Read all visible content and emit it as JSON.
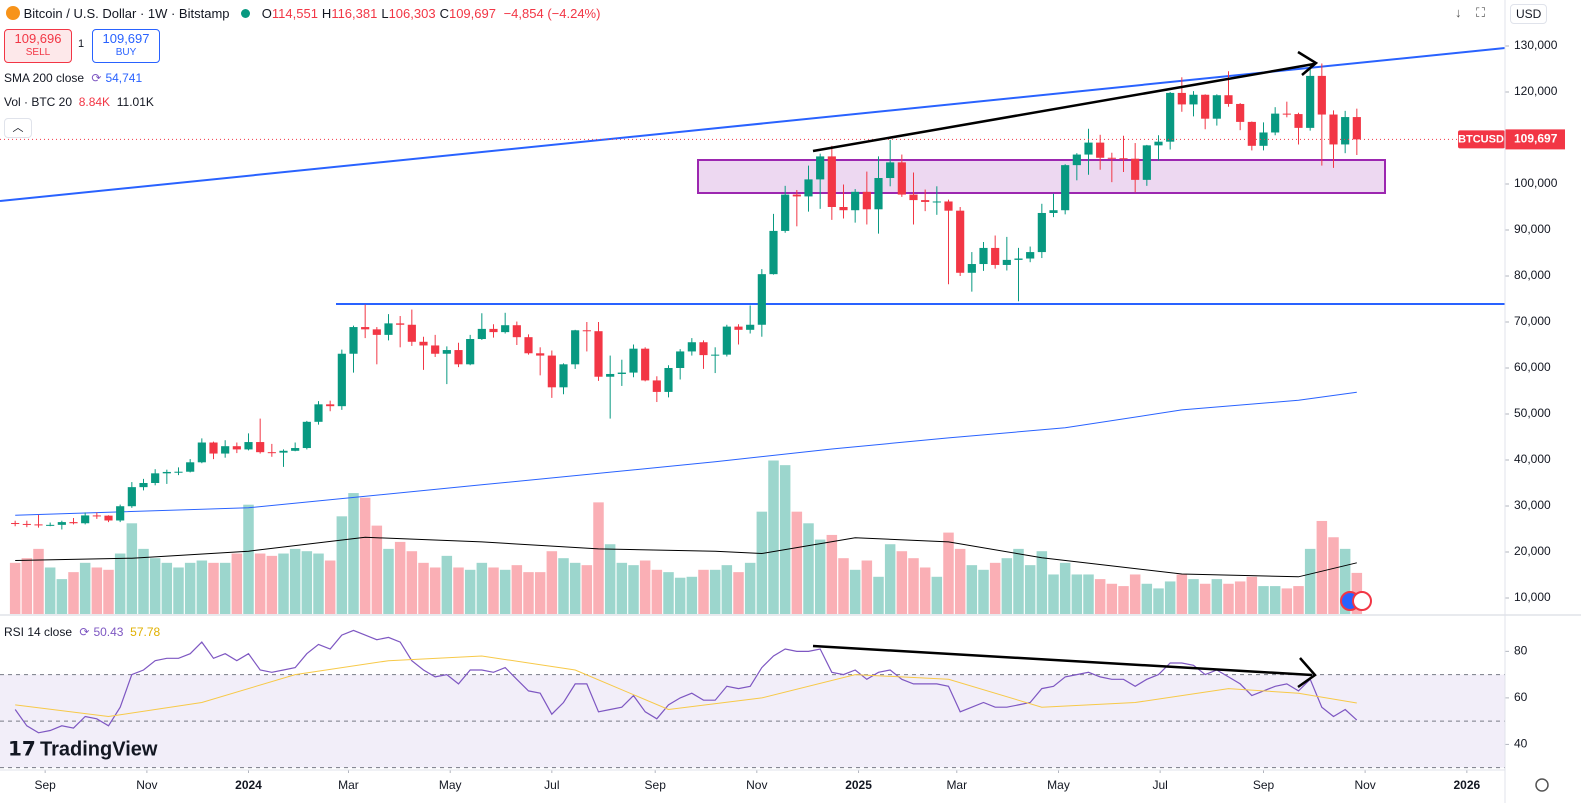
{
  "header": {
    "symbol": "Bitcoin / U.S. Dollar · 1W · Bitstamp",
    "ohlc": [
      {
        "label": "O",
        "value": "114,551"
      },
      {
        "label": "H",
        "value": "116,381"
      },
      {
        "label": "L",
        "value": "106,303"
      },
      {
        "label": "C",
        "value": "109,697"
      }
    ],
    "change": "−4,854 (−4.24%)",
    "sell": {
      "price": "109,696",
      "label": "SELL"
    },
    "spread": "1",
    "buy": {
      "price": "109,697",
      "label": "BUY"
    },
    "currency": "USD"
  },
  "logo": "TradingView",
  "chart_data": {
    "type": "candlestick",
    "candles": [
      [
        26300,
        26800,
        25600,
        26100
      ],
      [
        26100,
        26800,
        25400,
        26000
      ],
      [
        26000,
        28100,
        25300,
        25800
      ],
      [
        25800,
        26400,
        25600,
        25900
      ],
      [
        25900,
        26800,
        24900,
        26500
      ],
      [
        26500,
        27400,
        26000,
        26250
      ],
      [
        26250,
        28600,
        26000,
        27950
      ],
      [
        27950,
        28600,
        27200,
        27900
      ],
      [
        27900,
        28000,
        26500,
        26850
      ],
      [
        26850,
        30300,
        26500,
        29950
      ],
      [
        29950,
        35200,
        29600,
        34100
      ],
      [
        34100,
        35900,
        33400,
        35000
      ],
      [
        35000,
        38000,
        34500,
        37100
      ],
      [
        37100,
        37900,
        34800,
        37400
      ],
      [
        37400,
        38400,
        36700,
        37450
      ],
      [
        37450,
        40200,
        37300,
        39500
      ],
      [
        39500,
        44700,
        39300,
        43800
      ],
      [
        43800,
        44000,
        40200,
        41400
      ],
      [
        41400,
        44300,
        40500,
        43000
      ],
      [
        43000,
        43800,
        41500,
        42300
      ],
      [
        42300,
        45800,
        42100,
        43900
      ],
      [
        43900,
        49000,
        41400,
        41700
      ],
      [
        41700,
        43500,
        40700,
        41600
      ],
      [
        41600,
        42300,
        38500,
        42000
      ],
      [
        42000,
        43800,
        41900,
        42600
      ],
      [
        42600,
        48500,
        42300,
        48300
      ],
      [
        48300,
        52800,
        47700,
        52100
      ],
      [
        52100,
        52900,
        50600,
        51700
      ],
      [
        51700,
        64000,
        50900,
        63100
      ],
      [
        63100,
        69200,
        59000,
        68900
      ],
      [
        68900,
        73800,
        66500,
        68400
      ],
      [
        68400,
        68900,
        60800,
        67200
      ],
      [
        67200,
        71700,
        66000,
        69700
      ],
      [
        69700,
        71300,
        64500,
        69400
      ],
      [
        69400,
        72700,
        64800,
        65700
      ],
      [
        65700,
        66800,
        59600,
        64900
      ],
      [
        64900,
        67200,
        62400,
        63100
      ],
      [
        63100,
        64700,
        56500,
        63900
      ],
      [
        63900,
        65500,
        60200,
        60800
      ],
      [
        60800,
        67200,
        60600,
        66300
      ],
      [
        66300,
        71900,
        66100,
        68500
      ],
      [
        68500,
        69500,
        66600,
        67800
      ],
      [
        67800,
        72000,
        67500,
        69300
      ],
      [
        69300,
        70100,
        65000,
        66700
      ],
      [
        66700,
        67300,
        62900,
        63200
      ],
      [
        63200,
        64500,
        58400,
        62700
      ],
      [
        62700,
        63800,
        53500,
        55800
      ],
      [
        55800,
        61000,
        54300,
        60800
      ],
      [
        60800,
        68300,
        59800,
        68200
      ],
      [
        68200,
        70000,
        63600,
        68000
      ],
      [
        68000,
        70000,
        57200,
        58100
      ],
      [
        58100,
        62700,
        49000,
        58700
      ],
      [
        58700,
        61800,
        56100,
        59000
      ],
      [
        59000,
        65100,
        58000,
        64200
      ],
      [
        64200,
        64500,
        57100,
        57300
      ],
      [
        57300,
        58200,
        52600,
        54800
      ],
      [
        54800,
        60600,
        53600,
        60000
      ],
      [
        60000,
        64100,
        57500,
        63600
      ],
      [
        63600,
        66500,
        62700,
        65600
      ],
      [
        65600,
        66000,
        59800,
        62800
      ],
      [
        62800,
        64500,
        58900,
        62900
      ],
      [
        62900,
        69400,
        62500,
        69000
      ],
      [
        69000,
        69500,
        65100,
        68300
      ],
      [
        68300,
        73600,
        67500,
        69400
      ],
      [
        69400,
        81500,
        66800,
        80400
      ],
      [
        80400,
        93500,
        80300,
        89800
      ],
      [
        89800,
        99600,
        89400,
        97700
      ],
      [
        97700,
        98700,
        90800,
        97300
      ],
      [
        97300,
        104000,
        94000,
        101000
      ],
      [
        101000,
        106600,
        94600,
        106000
      ],
      [
        106000,
        108300,
        92200,
        95000
      ],
      [
        95000,
        99900,
        92500,
        94300
      ],
      [
        94300,
        98900,
        91600,
        98300
      ],
      [
        98300,
        102700,
        91200,
        94500
      ],
      [
        94500,
        106000,
        89200,
        101300
      ],
      [
        101300,
        109600,
        99500,
        104700
      ],
      [
        104700,
        106400,
        97200,
        97700
      ],
      [
        97700,
        102500,
        91200,
        96500
      ],
      [
        96500,
        98800,
        94100,
        96100
      ],
      [
        96100,
        99500,
        93300,
        96200
      ],
      [
        96200,
        96600,
        78200,
        94200
      ],
      [
        94200,
        95000,
        80000,
        80700
      ],
      [
        80700,
        85200,
        76600,
        82600
      ],
      [
        82600,
        87400,
        81100,
        86100
      ],
      [
        86100,
        88800,
        81600,
        82400
      ],
      [
        82400,
        88500,
        81200,
        83500
      ],
      [
        83500,
        86100,
        74500,
        83800
      ],
      [
        83800,
        86400,
        83000,
        85200
      ],
      [
        85200,
        95700,
        83900,
        93700
      ],
      [
        93700,
        97900,
        92800,
        94300
      ],
      [
        94300,
        104300,
        93400,
        104100
      ],
      [
        104100,
        106700,
        100800,
        106400
      ],
      [
        106400,
        112000,
        102000,
        109000
      ],
      [
        109000,
        110700,
        103100,
        105700
      ],
      [
        105700,
        106800,
        100400,
        105600
      ],
      [
        105600,
        110500,
        102600,
        105500
      ],
      [
        105500,
        108900,
        98200,
        100900
      ],
      [
        100900,
        108500,
        99600,
        108400
      ],
      [
        108400,
        110600,
        105100,
        109200
      ],
      [
        109200,
        120000,
        107500,
        119800
      ],
      [
        119800,
        123200,
        115700,
        117300
      ],
      [
        117300,
        120200,
        114700,
        119400
      ],
      [
        119400,
        119500,
        111900,
        114200
      ],
      [
        114200,
        119500,
        112700,
        119300
      ],
      [
        119300,
        124500,
        116800,
        117400
      ],
      [
        117400,
        117600,
        111700,
        113500
      ],
      [
        113500,
        113600,
        107300,
        108300
      ],
      [
        108300,
        113400,
        107300,
        111200
      ],
      [
        111200,
        116700,
        110600,
        115300
      ],
      [
        115300,
        117900,
        114500,
        115200
      ],
      [
        115200,
        115500,
        108600,
        112200
      ],
      [
        112200,
        125700,
        111600,
        123500
      ],
      [
        123500,
        126200,
        104000,
        115100
      ],
      [
        115100,
        116000,
        103500,
        108600
      ],
      [
        108600,
        115900,
        106700,
        114551
      ],
      [
        114551,
        116381,
        106303,
        109697
      ]
    ],
    "candle_colors": {
      "up": "#089981",
      "down": "#f23645"
    },
    "xlim": [
      -1.3,
      127.7
    ],
    "xticks": [
      {
        "value": 2.57,
        "label": "Sep"
      },
      {
        "value": 11.29,
        "label": "Nov"
      },
      {
        "value": 20.0,
        "label": "2024"
      },
      {
        "value": 28.57,
        "label": "Mar"
      },
      {
        "value": 37.29,
        "label": "May"
      },
      {
        "value": 46.0,
        "label": "Jul"
      },
      {
        "value": 54.86,
        "label": "Sep"
      },
      {
        "value": 63.57,
        "label": "Nov"
      },
      {
        "value": 72.29,
        "label": "2025"
      },
      {
        "value": 80.71,
        "label": "Mar"
      },
      {
        "value": 89.43,
        "label": "May"
      },
      {
        "value": 98.14,
        "label": "Jul"
      },
      {
        "value": 107.0,
        "label": "Sep"
      },
      {
        "value": 115.71,
        "label": "Nov"
      },
      {
        "value": 124.43,
        "label": "2026"
      }
    ],
    "ylim": [
      6520,
      140000
    ],
    "yticks": [
      {
        "value": 130000,
        "label": "130,000"
      },
      {
        "value": 120000,
        "label": "120,000"
      },
      {
        "value": 110000,
        "label": "110,000"
      },
      {
        "value": 100000,
        "label": "100,000"
      },
      {
        "value": 90000,
        "label": "90,000"
      },
      {
        "value": 80000,
        "label": "80,000"
      },
      {
        "value": 70000,
        "label": "70,000"
      },
      {
        "value": 60000,
        "label": "60,000"
      },
      {
        "value": 50000,
        "label": "50,000"
      },
      {
        "value": 40000,
        "label": "40,000"
      },
      {
        "value": 30000,
        "label": "30,000"
      },
      {
        "value": 20000,
        "label": "20,000"
      },
      {
        "value": 10000,
        "label": "10,000"
      }
    ],
    "last_price": {
      "symbol": "BTCUSD",
      "value": 109697,
      "label": "109,697"
    },
    "sma": {
      "title": "SMA 200 close",
      "value_label": "54,741",
      "color": "#2962ff",
      "x": [
        0,
        20,
        40,
        60,
        70,
        80,
        90,
        100,
        110,
        115
      ],
      "values": [
        28000,
        29600,
        34600,
        39600,
        42400,
        44800,
        47000,
        50900,
        53000,
        54741
      ]
    },
    "volume": {
      "title": "Vol · BTC 20",
      "value_label": "8.84K",
      "ma_label": "11.01K",
      "ylim": [
        0,
        132000
      ],
      "values": [
        11000,
        12000,
        14000,
        10000,
        7500,
        9000,
        11000,
        10000,
        9500,
        13000,
        19500,
        14000,
        12000,
        11000,
        10000,
        11000,
        11500,
        11000,
        11000,
        13000,
        23500,
        13000,
        12500,
        13000,
        14000,
        13500,
        13000,
        11500,
        21000,
        26000,
        25000,
        19000,
        14000,
        15500,
        13500,
        11000,
        10000,
        12500,
        10000,
        9500,
        11000,
        10000,
        9500,
        10500,
        9000,
        9000,
        13500,
        12000,
        11000,
        10500,
        24000,
        15000,
        11000,
        10500,
        11500,
        9500,
        9000,
        7800,
        8000,
        9500,
        9500,
        10500,
        9000,
        11000,
        22000,
        33000,
        32000,
        22000,
        19500,
        16000,
        17000,
        12000,
        9500,
        11500,
        8000,
        15000,
        13500,
        12000,
        10000,
        8000,
        17500,
        14000,
        10500,
        9500,
        11000,
        12000,
        14000,
        10500,
        13500,
        8500,
        11000,
        8500,
        8500,
        7500,
        6500,
        6000,
        8500,
        6500,
        5500,
        7000,
        8500,
        7500,
        6500,
        7500,
        6500,
        7000,
        8000,
        6000,
        6000,
        5500,
        6000,
        14000,
        20000,
        16500,
        14000,
        8840
      ],
      "ma_x": [
        0,
        10,
        20,
        30,
        40,
        50,
        60,
        64,
        72,
        80,
        88,
        100,
        110,
        115
      ],
      "ma_values": [
        11500,
        12000,
        13500,
        16500,
        15500,
        14000,
        13500,
        13000,
        16400,
        15500,
        12100,
        8600,
        8000,
        11010
      ]
    },
    "rsi": {
      "title": "RSI 14 close",
      "value_label": "50.43",
      "ma_label": "57.78",
      "color": "#7e57c2",
      "ma_color": "#f7c948",
      "ylim": [
        29,
        95.2
      ],
      "yticks": [
        80,
        60,
        40
      ],
      "levels": [
        70,
        50,
        30
      ],
      "values": [
        55,
        48,
        45,
        46,
        48,
        47,
        52,
        51,
        48,
        56,
        70,
        72,
        76,
        77,
        77,
        79,
        84,
        77,
        79,
        76,
        79,
        72,
        71,
        72,
        73,
        79,
        83,
        81,
        87,
        89,
        87,
        85,
        86,
        84,
        76,
        72,
        69,
        70,
        66,
        72,
        72,
        71,
        73,
        68,
        63,
        62,
        53,
        58,
        66,
        66,
        54,
        55,
        56,
        61,
        54,
        51,
        57,
        60,
        62,
        59,
        59,
        65,
        64,
        65,
        73,
        78,
        81,
        80,
        80,
        81,
        71,
        70,
        72,
        68,
        71,
        72,
        68,
        66,
        66,
        66,
        65,
        54,
        56,
        58,
        56,
        56,
        57,
        58,
        64,
        65,
        69,
        70,
        71,
        69,
        68,
        68,
        65,
        68,
        70,
        75,
        75,
        74,
        70,
        72,
        69,
        66,
        61,
        63,
        65,
        66,
        63,
        68,
        56,
        52,
        55,
        50.43
      ],
      "ma_x": [
        0,
        8,
        16,
        24,
        32,
        40,
        48,
        56,
        64,
        72,
        80,
        88,
        96,
        104,
        110,
        115
      ],
      "ma_values": [
        57,
        52,
        58,
        70,
        76,
        78,
        72,
        55,
        60,
        70,
        68,
        56,
        58,
        64,
        62,
        57.78
      ]
    }
  }
}
